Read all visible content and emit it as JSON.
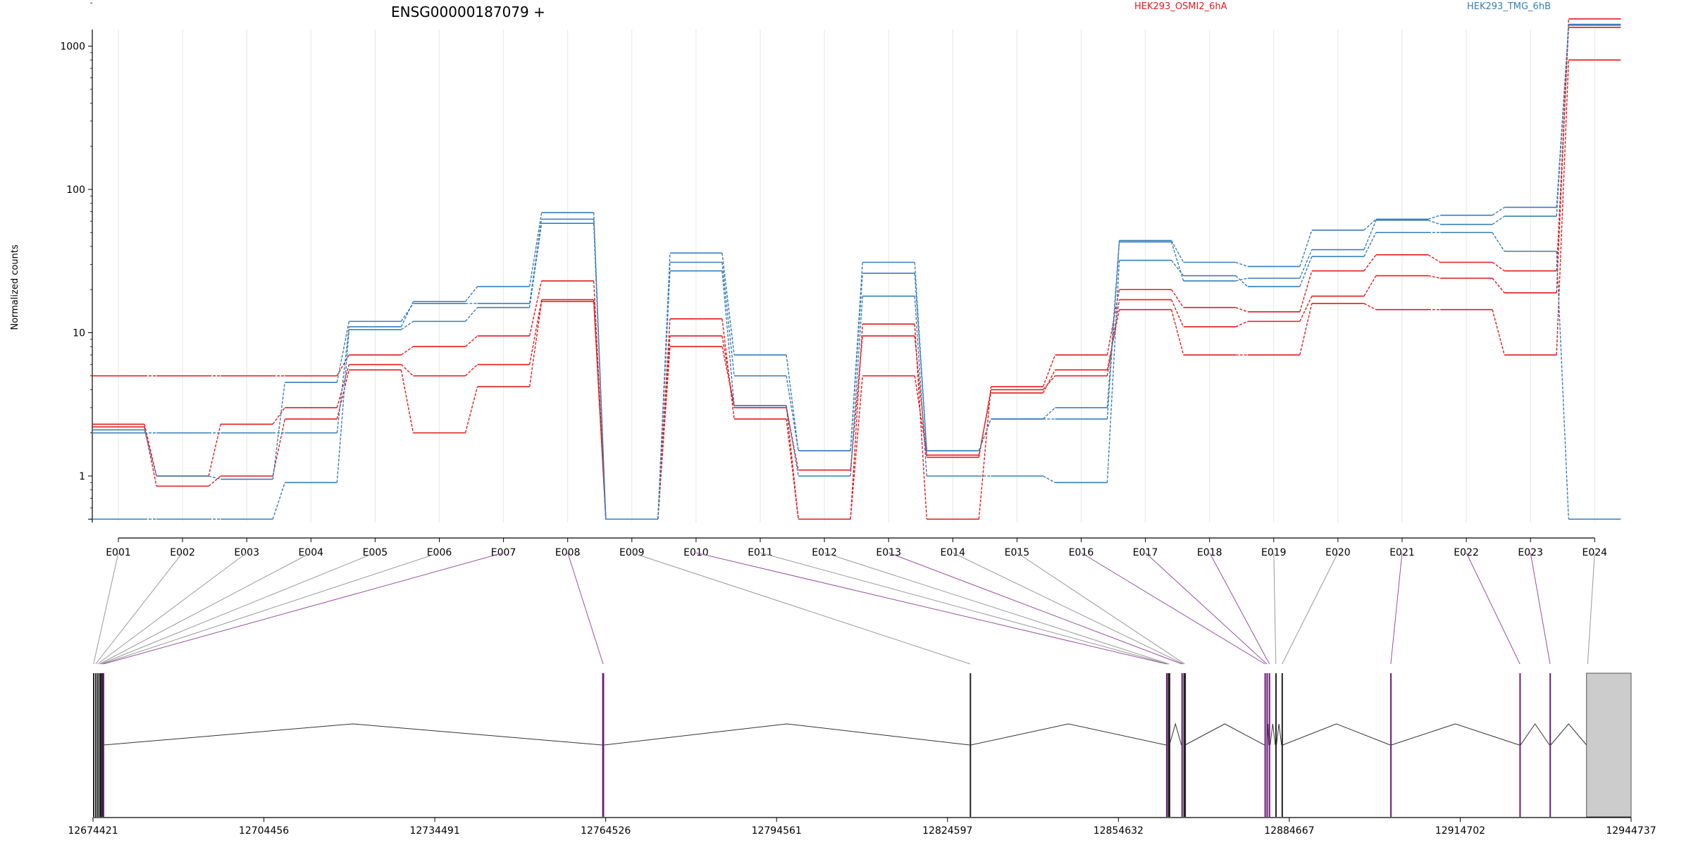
{
  "chart_data": {
    "type": "line",
    "title": "ENSG00000187079 +",
    "ylabel": "Normalized counts",
    "yscale": "log",
    "ylim": [
      0.5,
      2000
    ],
    "yticks": [
      1,
      10,
      100,
      1000
    ],
    "ytick_labels": [
      "1",
      "10",
      "100",
      "1000"
    ],
    "grid": "vertical-light",
    "legend": "top",
    "colors": {
      "groupA": "#e41a1c",
      "groupB": "#377eb8",
      "connector_gray": "#999999",
      "connector_purple": "#984ea3",
      "exon": "#222222",
      "exon_purple": "#6a1b7a",
      "utr": "#cccccc"
    },
    "categories": [
      "E001",
      "E002",
      "E003",
      "E004",
      "E005",
      "E006",
      "E007",
      "E008",
      "E009",
      "E010",
      "E011",
      "E012",
      "E013",
      "E014",
      "E015",
      "E016",
      "E017",
      "E018",
      "E019",
      "E020",
      "E021",
      "E022",
      "E023",
      "E024"
    ],
    "series": [
      {
        "name": "HEK293_OSMI2_6hA",
        "group": "groupA",
        "values": [
          2.3,
          1.0,
          2.3,
          3.0,
          6.0,
          5.0,
          6.0,
          17.0,
          0.5,
          9.5,
          3.0,
          1.1,
          9.5,
          1.35,
          4.0,
          5.0,
          17.0,
          11.0,
          12.0,
          18.0,
          25.0,
          24.0,
          19.0,
          1550
        ]
      },
      {
        "group": "groupA",
        "values": [
          5.0,
          5.0,
          5.0,
          5.0,
          7.0,
          8.0,
          9.5,
          23.0,
          0.5,
          12.5,
          2.5,
          0.5,
          11.5,
          0.5,
          4.2,
          7.0,
          20.0,
          15.0,
          14.0,
          27.0,
          35.0,
          31.0,
          27.0,
          1350
        ]
      },
      {
        "group": "groupA",
        "values": [
          2.2,
          0.85,
          1.0,
          2.5,
          5.5,
          2.0,
          4.2,
          16.5,
          0.5,
          8.0,
          3.1,
          0.5,
          5.0,
          1.4,
          3.8,
          5.5,
          14.5,
          7.0,
          7.0,
          16.0,
          14.5,
          14.5,
          7.0,
          800
        ]
      },
      {
        "name": "HEK293_TMG_6hB",
        "group": "groupB",
        "values": [
          2.0,
          2.0,
          2.0,
          2.0,
          11.0,
          16.5,
          21.0,
          69.0,
          0.5,
          36.0,
          7.0,
          1.5,
          31.0,
          1.5,
          2.5,
          3.0,
          44.0,
          31.0,
          29.0,
          52.0,
          62.0,
          66.0,
          75.0,
          1400
        ]
      },
      {
        "group": "groupB",
        "values": [
          2.1,
          1.0,
          0.95,
          4.5,
          12.0,
          16.0,
          16.0,
          62.0,
          0.5,
          31.0,
          5.0,
          1.5,
          26.0,
          1.5,
          2.5,
          2.5,
          43.0,
          23.0,
          24.0,
          38.0,
          61.0,
          57.0,
          65.0,
          1420
        ]
      },
      {
        "group": "groupB",
        "values": [
          0.5,
          0.5,
          0.5,
          0.9,
          10.5,
          12.0,
          15.0,
          58.0,
          0.5,
          27.0,
          3.1,
          1.0,
          18.0,
          1.0,
          1.0,
          0.9,
          32.0,
          25.0,
          21.0,
          34.0,
          50.0,
          50.0,
          37.0,
          0.5
        ]
      }
    ],
    "exon_ticks": [
      "E001",
      "E002",
      "E003",
      "E004",
      "E005",
      "E006",
      "E007",
      "E008",
      "E009",
      "E010",
      "E011",
      "E012",
      "E013",
      "E014",
      "E015",
      "E016",
      "E017",
      "E018",
      "E019",
      "E020",
      "E021",
      "E022",
      "E023",
      "E024"
    ],
    "genome_axis": {
      "range": [
        12674421,
        12944737
      ],
      "ticks": [
        12674421,
        12704456,
        12734491,
        12764526,
        12794561,
        12824597,
        12854632,
        12884667,
        12914702,
        12944737
      ],
      "tick_labels": [
        "12674421",
        "12704456",
        "12734491",
        "12764526",
        "12794561",
        "12824597",
        "12854632",
        "12884667",
        "12914702",
        "12944737"
      ]
    },
    "exons": [
      {
        "id": "E001",
        "start": 12674421,
        "end": 12674600,
        "purple": false
      },
      {
        "id": "E002",
        "start": 12674800,
        "end": 12674950,
        "purple": false
      },
      {
        "id": "E003",
        "start": 12675150,
        "end": 12675300,
        "purple": false
      },
      {
        "id": "E004",
        "start": 12675500,
        "end": 12675650,
        "purple": false
      },
      {
        "id": "E005",
        "start": 12675700,
        "end": 12675850,
        "purple": false
      },
      {
        "id": "E006",
        "start": 12675950,
        "end": 12676050,
        "purple": false
      },
      {
        "id": "E007",
        "start": 12676150,
        "end": 12676300,
        "purple": true
      },
      {
        "id": "E008",
        "start": 12763900,
        "end": 12764250,
        "purple": true
      },
      {
        "id": "E009",
        "start": 12828500,
        "end": 12828700,
        "purple": false
      },
      {
        "id": "E010",
        "start": 12863000,
        "end": 12863200,
        "purple": true
      },
      {
        "id": "E011",
        "start": 12863300,
        "end": 12863400,
        "purple": false
      },
      {
        "id": "E012",
        "start": 12863500,
        "end": 12863600,
        "purple": false
      },
      {
        "id": "E013",
        "start": 12865700,
        "end": 12865900,
        "purple": true
      },
      {
        "id": "E014",
        "start": 12866050,
        "end": 12866150,
        "purple": false
      },
      {
        "id": "E015",
        "start": 12866250,
        "end": 12866350,
        "purple": false
      },
      {
        "id": "E016",
        "start": 12880300,
        "end": 12880500,
        "purple": true
      },
      {
        "id": "E017",
        "start": 12880650,
        "end": 12880800,
        "purple": true
      },
      {
        "id": "E018",
        "start": 12881050,
        "end": 12881300,
        "purple": true
      },
      {
        "id": "E019",
        "start": 12882200,
        "end": 12882400,
        "purple": false
      },
      {
        "id": "E020",
        "start": 12883300,
        "end": 12883500,
        "purple": false
      },
      {
        "id": "E021",
        "start": 12902400,
        "end": 12902600,
        "purple": true
      },
      {
        "id": "E022",
        "start": 12925100,
        "end": 12925300,
        "purple": true
      },
      {
        "id": "E023",
        "start": 12930400,
        "end": 12930600,
        "purple": true
      },
      {
        "id": "E024",
        "start": 12936900,
        "end": 12944737,
        "purple": false,
        "utr": true
      }
    ]
  }
}
